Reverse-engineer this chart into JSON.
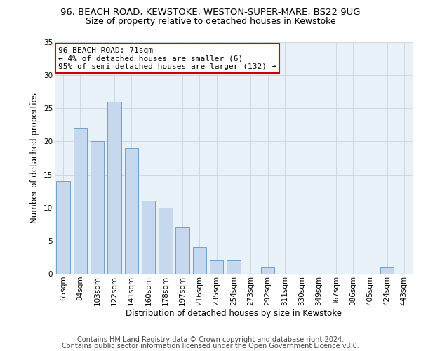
{
  "title_line1": "96, BEACH ROAD, KEWSTOKE, WESTON-SUPER-MARE, BS22 9UG",
  "title_line2": "Size of property relative to detached houses in Kewstoke",
  "xlabel": "Distribution of detached houses by size in Kewstoke",
  "ylabel": "Number of detached properties",
  "categories": [
    "65sqm",
    "84sqm",
    "103sqm",
    "122sqm",
    "141sqm",
    "160sqm",
    "178sqm",
    "197sqm",
    "216sqm",
    "235sqm",
    "254sqm",
    "273sqm",
    "292sqm",
    "311sqm",
    "330sqm",
    "349sqm",
    "367sqm",
    "386sqm",
    "405sqm",
    "424sqm",
    "443sqm"
  ],
  "values": [
    14,
    22,
    20,
    26,
    19,
    11,
    10,
    7,
    4,
    2,
    2,
    0,
    1,
    0,
    0,
    0,
    0,
    0,
    0,
    1,
    0
  ],
  "bar_color": "#c5d8ed",
  "bar_edge_color": "#5a9ac8",
  "annotation_text": "96 BEACH ROAD: 71sqm\n← 4% of detached houses are smaller (6)\n95% of semi-detached houses are larger (132) →",
  "annotation_box_color": "#ffffff",
  "annotation_box_edge_color": "#cc0000",
  "ylim": [
    0,
    35
  ],
  "yticks": [
    0,
    5,
    10,
    15,
    20,
    25,
    30,
    35
  ],
  "footer_line1": "Contains HM Land Registry data © Crown copyright and database right 2024.",
  "footer_line2": "Contains public sector information licensed under the Open Government Licence v3.0.",
  "bg_color": "#ffffff",
  "plot_bg_color": "#e8f0f8",
  "grid_color": "#c8d4e0",
  "title_fontsize": 9.5,
  "subtitle_fontsize": 9,
  "axis_label_fontsize": 8.5,
  "tick_fontsize": 7.5,
  "annotation_fontsize": 8,
  "footer_fontsize": 7
}
